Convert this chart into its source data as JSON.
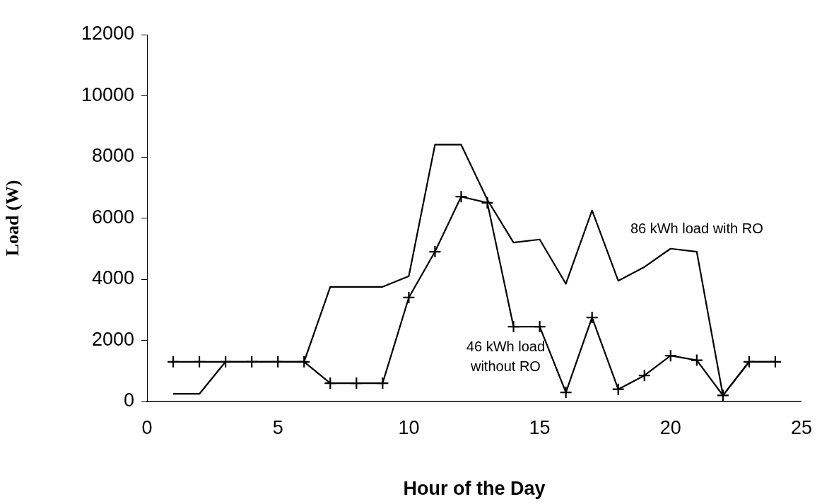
{
  "chart_data": {
    "type": "line",
    "xlabel": "Hour of the Day",
    "ylabel": "Load (W)",
    "x": [
      1,
      2,
      3,
      4,
      5,
      6,
      7,
      8,
      9,
      10,
      11,
      12,
      13,
      14,
      15,
      16,
      17,
      18,
      19,
      20,
      21,
      22,
      23,
      24
    ],
    "xlim": [
      0,
      25
    ],
    "xticks": [
      0,
      5,
      10,
      15,
      20,
      25
    ],
    "ylim": [
      0,
      12000
    ],
    "yticks": [
      0,
      2000,
      4000,
      6000,
      8000,
      10000,
      12000
    ],
    "grid": false,
    "legend": false,
    "line_style": "solid",
    "series": [
      {
        "name": "86 kWh load with RO",
        "color": "#000000",
        "marker": "none",
        "values": [
          250,
          250,
          1300,
          1300,
          1300,
          1300,
          3750,
          3750,
          3750,
          4100,
          8400,
          8400,
          6600,
          5200,
          5300,
          3850,
          6250,
          3950,
          4400,
          5000,
          4900,
          200,
          1300,
          1300
        ]
      },
      {
        "name": "46 kWh load\nwithout RO",
        "color": "#000000",
        "marker": "cross",
        "values": [
          1300,
          1300,
          1300,
          1300,
          1300,
          1300,
          600,
          600,
          600,
          3400,
          4900,
          6700,
          6500,
          2450,
          2450,
          300,
          2750,
          400,
          850,
          1500,
          1350,
          200,
          1300,
          1300
        ]
      }
    ]
  }
}
